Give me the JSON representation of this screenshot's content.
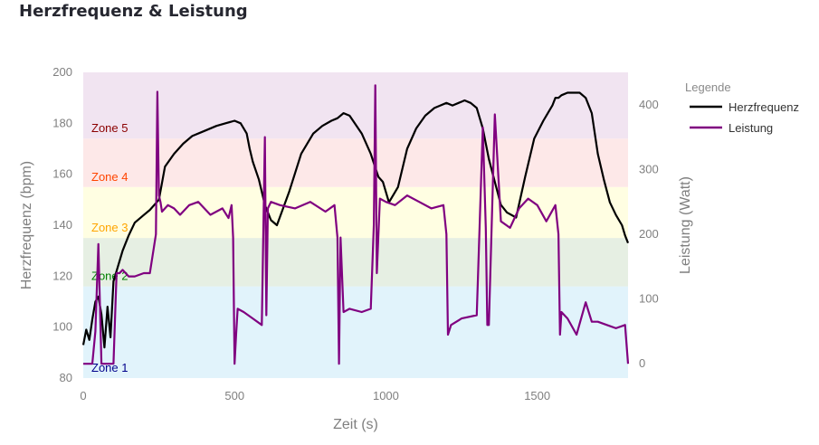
{
  "title": "Herzfrequenz & Leistung",
  "chart_data": {
    "type": "line",
    "xlabel": "Zeit (s)",
    "ylabel": "Herzfrequenz (bpm)",
    "y2label": "Leistung (Watt)",
    "xlim": [
      0,
      1800
    ],
    "ylim": [
      80,
      200
    ],
    "y2lim": [
      -22,
      450
    ],
    "x_ticks": [
      0,
      500,
      1000,
      1500
    ],
    "y_ticks": [
      80,
      100,
      120,
      140,
      160,
      180,
      200
    ],
    "y2_ticks": [
      0,
      100,
      200,
      300,
      400
    ],
    "grid": false,
    "legend": {
      "title": "Legende",
      "placement": "right"
    },
    "zones": [
      {
        "label": "Zone 1",
        "from": 80,
        "to": 116,
        "fill": "#e1f3fb",
        "text_color": "#00008b"
      },
      {
        "label": "Zone 2",
        "from": 116,
        "to": 135,
        "fill": "#e6efe3",
        "text_color": "#008000"
      },
      {
        "label": "Zone 3",
        "from": 135,
        "to": 155,
        "fill": "#fffee2",
        "text_color": "#ffa500"
      },
      {
        "label": "Zone 4",
        "from": 155,
        "to": 174,
        "fill": "#fde8e8",
        "text_color": "#ff4500"
      },
      {
        "label": "Zone 5",
        "from": 174,
        "to": 200,
        "fill": "#f1e4f1",
        "text_color": "#8b0000"
      }
    ],
    "series": [
      {
        "name": "Herzfrequenz",
        "axis": "y",
        "color": "#000000",
        "x": [
          0,
          10,
          20,
          30,
          40,
          50,
          60,
          70,
          80,
          90,
          100,
          110,
          130,
          150,
          170,
          200,
          220,
          250,
          270,
          300,
          330,
          360,
          400,
          440,
          470,
          500,
          520,
          540,
          550,
          560,
          580,
          600,
          620,
          640,
          680,
          720,
          760,
          790,
          820,
          840,
          850,
          860,
          880,
          920,
          950,
          975,
          990,
          1010,
          1040,
          1070,
          1100,
          1130,
          1160,
          1180,
          1200,
          1220,
          1240,
          1260,
          1280,
          1300,
          1320,
          1340,
          1360,
          1380,
          1400,
          1430,
          1460,
          1490,
          1520,
          1550,
          1560,
          1570,
          1580,
          1600,
          1620,
          1640,
          1660,
          1680,
          1700,
          1720,
          1740,
          1760,
          1780,
          1790,
          1800
        ],
        "values": [
          93,
          99,
          95,
          103,
          110,
          112,
          105,
          92,
          108,
          96,
          118,
          122,
          130,
          136,
          141,
          144,
          146,
          150,
          163,
          168,
          172,
          175,
          177,
          179,
          180,
          181,
          180,
          176,
          170,
          165,
          158,
          148,
          142,
          140,
          153,
          168,
          176,
          179,
          181,
          182,
          183,
          184,
          183,
          176,
          168,
          159,
          157,
          149,
          155,
          170,
          178,
          183,
          186,
          187,
          188,
          187,
          188,
          189,
          188,
          186,
          178,
          166,
          157,
          148,
          145,
          143,
          159,
          174,
          181,
          187,
          190,
          190,
          191,
          192,
          192,
          192,
          190,
          184,
          168,
          158,
          149,
          144,
          140,
          136,
          133
        ]
      },
      {
        "name": "Leistung",
        "axis": "y2",
        "color": "#800080",
        "x": [
          0,
          10,
          20,
          30,
          40,
          50,
          60,
          70,
          80,
          90,
          100,
          110,
          120,
          130,
          150,
          170,
          200,
          220,
          240,
          245,
          250,
          255,
          260,
          280,
          300,
          320,
          350,
          380,
          420,
          460,
          480,
          490,
          495,
          500,
          505,
          510,
          530,
          560,
          590,
          600,
          605,
          610,
          620,
          650,
          700,
          750,
          800,
          830,
          840,
          845,
          850,
          860,
          880,
          920,
          950,
          960,
          965,
          970,
          980,
          1000,
          1030,
          1070,
          1110,
          1150,
          1190,
          1200,
          1205,
          1215,
          1250,
          1300,
          1320,
          1330,
          1335,
          1340,
          1360,
          1380,
          1410,
          1440,
          1470,
          1500,
          1530,
          1560,
          1570,
          1575,
          1580,
          1600,
          1630,
          1660,
          1680,
          1700,
          1730,
          1760,
          1790,
          1800
        ],
        "values": [
          0,
          0,
          0,
          0,
          50,
          185,
          0,
          0,
          0,
          0,
          0,
          140,
          140,
          145,
          135,
          135,
          140,
          140,
          200,
          420,
          260,
          250,
          235,
          245,
          240,
          230,
          245,
          250,
          230,
          240,
          225,
          245,
          195,
          0,
          45,
          85,
          80,
          70,
          60,
          350,
          75,
          240,
          250,
          245,
          240,
          250,
          235,
          245,
          195,
          0,
          195,
          80,
          85,
          80,
          85,
          215,
          430,
          140,
          255,
          250,
          245,
          260,
          250,
          240,
          245,
          200,
          45,
          60,
          70,
          75,
          365,
          210,
          60,
          60,
          385,
          220,
          210,
          240,
          255,
          245,
          220,
          245,
          200,
          45,
          80,
          70,
          45,
          95,
          65,
          65,
          60,
          55,
          60,
          0
        ]
      }
    ]
  }
}
